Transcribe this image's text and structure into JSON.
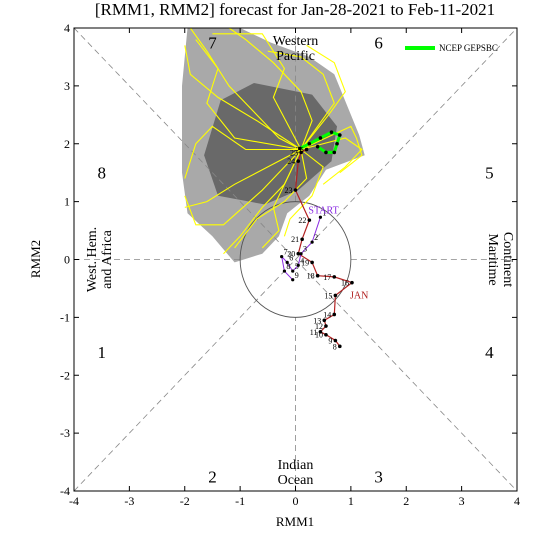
{
  "chart_data": {
    "type": "line",
    "title": "[RMM1, RMM2] forecast for Jan-28-2021 to Feb-11-2021",
    "xlabel": "RMM1",
    "ylabel": "RMM2",
    "xlim": [
      -4,
      4
    ],
    "ylim": [
      -4,
      4
    ],
    "xticks": [
      "-4",
      "-3",
      "-2",
      "-1",
      "0",
      "1",
      "2",
      "3",
      "4"
    ],
    "yticks": [
      "-4",
      "-3",
      "-2",
      "-1",
      "0",
      "1",
      "2",
      "3",
      "4"
    ],
    "grid": false,
    "legend_position": "top-right",
    "phases": [
      {
        "label": "1",
        "x": -3.5,
        "y": -1.6
      },
      {
        "label": "2",
        "x": -1.5,
        "y": -3.75
      },
      {
        "label": "3",
        "x": 1.5,
        "y": -3.75
      },
      {
        "label": "4",
        "x": 3.5,
        "y": -1.6
      },
      {
        "label": "5",
        "x": 3.5,
        "y": 1.5
      },
      {
        "label": "6",
        "x": 1.5,
        "y": 3.75
      },
      {
        "label": "7",
        "x": -1.5,
        "y": 3.75
      },
      {
        "label": "8",
        "x": -3.5,
        "y": 1.5
      }
    ],
    "regions": {
      "top": [
        "Western",
        "Pacific"
      ],
      "bottom": [
        "Indian",
        "Ocean"
      ],
      "left": [
        "West. Hem.",
        "and Africa"
      ],
      "right": [
        "Maritime",
        "Continent"
      ]
    },
    "annotations": {
      "start": "START",
      "month": "JAN"
    },
    "legend": [
      {
        "name": "NCEP GEPSBC",
        "color": "#00ff00"
      }
    ],
    "observed": {
      "color": "#b22222",
      "days": [
        {
          "d": "8",
          "x": 0.8,
          "y": -1.5
        },
        {
          "d": "9",
          "x": 0.72,
          "y": -1.4
        },
        {
          "d": "10",
          "x": 0.55,
          "y": -1.3
        },
        {
          "d": "11",
          "x": 0.45,
          "y": -1.25
        },
        {
          "d": "12",
          "x": 0.55,
          "y": -1.15
        },
        {
          "d": "13",
          "x": 0.52,
          "y": -1.05
        },
        {
          "d": "14",
          "x": 0.7,
          "y": -0.95
        },
        {
          "d": "15",
          "x": 0.72,
          "y": -0.62
        },
        {
          "d": "16",
          "x": 1.02,
          "y": -0.4
        },
        {
          "d": "17",
          "x": 0.7,
          "y": -0.3
        },
        {
          "d": "18",
          "x": 0.4,
          "y": -0.28
        },
        {
          "d": "19",
          "x": 0.3,
          "y": -0.05
        },
        {
          "d": "20",
          "x": 0.05,
          "y": 0.1
        },
        {
          "d": "21",
          "x": 0.12,
          "y": 0.35
        },
        {
          "d": "22",
          "x": 0.25,
          "y": 0.68
        },
        {
          "d": "23",
          "x": 0.0,
          "y": 1.2
        },
        {
          "d": "24",
          "x": 0.05,
          "y": 1.7
        },
        {
          "d": "25",
          "x": 0.1,
          "y": 1.85
        },
        {
          "d": "26",
          "x": 0.2,
          "y": 1.9
        }
      ]
    },
    "forecast_path": {
      "color": "#8a2be2",
      "days": [
        {
          "d": "1",
          "x": 0.45,
          "y": 0.73
        },
        {
          "d": "2",
          "x": 0.3,
          "y": 0.3
        },
        {
          "d": "3",
          "x": 0.1,
          "y": 0.1
        },
        {
          "d": "4",
          "x": 0.05,
          "y": -0.1
        },
        {
          "d": "5",
          "x": -0.05,
          "y": -0.2
        },
        {
          "d": "6",
          "x": -0.15,
          "y": -0.05
        },
        {
          "d": "7",
          "x": -0.25,
          "y": 0.05
        },
        {
          "d": "8",
          "x": -0.2,
          "y": -0.2
        },
        {
          "d": "9",
          "x": -0.05,
          "y": -0.35
        }
      ]
    },
    "ensemble_mean": {
      "name": "NCEP GEPSBC",
      "color": "#00ff00",
      "points": [
        {
          "x": 0.08,
          "y": 1.92
        },
        {
          "x": 0.25,
          "y": 2.0
        },
        {
          "x": 0.45,
          "y": 2.1
        },
        {
          "x": 0.65,
          "y": 2.2
        },
        {
          "x": 0.8,
          "y": 2.15
        },
        {
          "x": 0.75,
          "y": 2.0
        },
        {
          "x": 0.7,
          "y": 1.85
        },
        {
          "x": 0.55,
          "y": 1.85
        },
        {
          "x": 0.4,
          "y": 1.95
        }
      ]
    },
    "spread_outer": [
      [
        -1.95,
        4.0
      ],
      [
        -1.0,
        4.0
      ],
      [
        -0.45,
        3.75
      ],
      [
        0.25,
        3.5
      ],
      [
        0.7,
        3.2
      ],
      [
        1.15,
        2.15
      ],
      [
        1.25,
        1.8
      ],
      [
        0.55,
        1.55
      ],
      [
        0.25,
        1.1
      ],
      [
        -0.15,
        0.8
      ],
      [
        -0.3,
        0.4
      ],
      [
        -0.6,
        0.1
      ],
      [
        -1.1,
        -0.05
      ],
      [
        -1.5,
        0.4
      ],
      [
        -1.95,
        0.8
      ],
      [
        -2.05,
        1.5
      ],
      [
        -2.05,
        3.0
      ]
    ],
    "spread_inner": [
      [
        -1.35,
        2.75
      ],
      [
        -0.75,
        3.05
      ],
      [
        0.3,
        2.85
      ],
      [
        0.75,
        2.3
      ],
      [
        0.65,
        1.7
      ],
      [
        0.05,
        1.2
      ],
      [
        -0.55,
        0.95
      ],
      [
        -1.4,
        1.1
      ],
      [
        -1.65,
        1.8
      ]
    ],
    "ensemble_members": [
      [
        [
          0.1,
          1.9
        ],
        [
          -0.3,
          2.1
        ],
        [
          -0.8,
          2.6
        ],
        [
          -1.2,
          3.0
        ],
        [
          -1.6,
          3.6
        ],
        [
          -1.9,
          4.0
        ]
      ],
      [
        [
          0.1,
          1.9
        ],
        [
          0.3,
          2.4
        ],
        [
          0.1,
          2.9
        ],
        [
          -0.4,
          3.4
        ],
        [
          -0.9,
          3.8
        ],
        [
          -1.2,
          4.0
        ]
      ],
      [
        [
          0.1,
          1.9
        ],
        [
          0.6,
          2.5
        ],
        [
          0.9,
          2.9
        ],
        [
          0.7,
          3.4
        ],
        [
          0.2,
          3.7
        ]
      ],
      [
        [
          0.1,
          1.9
        ],
        [
          0.9,
          2.1
        ],
        [
          1.2,
          1.9
        ],
        [
          0.9,
          1.6
        ],
        [
          0.5,
          1.3
        ]
      ],
      [
        [
          0.1,
          1.9
        ],
        [
          -0.5,
          1.6
        ],
        [
          -1.1,
          1.3
        ],
        [
          -1.6,
          1.0
        ],
        [
          -2.0,
          0.9
        ]
      ],
      [
        [
          0.1,
          1.9
        ],
        [
          -0.2,
          1.3
        ],
        [
          -0.6,
          0.9
        ],
        [
          -1.0,
          0.4
        ],
        [
          -1.3,
          0.1
        ]
      ],
      [
        [
          0.1,
          1.9
        ],
        [
          -0.7,
          2.4
        ],
        [
          -1.4,
          2.8
        ],
        [
          -1.9,
          3.2
        ],
        [
          -2.0,
          3.7
        ]
      ],
      [
        [
          0.1,
          1.9
        ],
        [
          -0.1,
          1.5
        ],
        [
          -0.4,
          0.9
        ],
        [
          -0.3,
          0.5
        ],
        [
          -0.6,
          0.2
        ]
      ],
      [
        [
          0.1,
          1.9
        ],
        [
          0.5,
          1.6
        ],
        [
          0.3,
          1.1
        ],
        [
          -0.1,
          0.7
        ],
        [
          -0.2,
          0.4
        ]
      ],
      [
        [
          0.1,
          1.9
        ],
        [
          -0.9,
          1.9
        ],
        [
          -1.5,
          2.3
        ],
        [
          -1.8,
          2.0
        ],
        [
          -2.0,
          1.4
        ]
      ],
      [
        [
          0.1,
          1.9
        ],
        [
          -0.4,
          2.8
        ],
        [
          -0.2,
          3.3
        ],
        [
          -0.6,
          3.9
        ],
        [
          -1.5,
          3.9
        ]
      ],
      [
        [
          0.1,
          1.9
        ],
        [
          0.7,
          2.7
        ],
        [
          0.5,
          3.2
        ],
        [
          0.1,
          3.5
        ],
        [
          -0.5,
          3.6
        ]
      ],
      [
        [
          0.1,
          1.9
        ],
        [
          1.0,
          2.3
        ],
        [
          1.1,
          2.1
        ],
        [
          1.2,
          1.8
        ],
        [
          0.8,
          1.5
        ]
      ],
      [
        [
          0.1,
          1.9
        ],
        [
          -0.6,
          1.2
        ],
        [
          -1.3,
          0.6
        ],
        [
          -1.8,
          0.6
        ],
        [
          -2.0,
          1.1
        ]
      ],
      [
        [
          0.1,
          1.9
        ],
        [
          -1.1,
          2.1
        ],
        [
          -1.6,
          2.7
        ],
        [
          -1.4,
          3.3
        ],
        [
          -1.8,
          3.8
        ]
      ],
      [
        [
          0.1,
          1.9
        ],
        [
          0.2,
          1.4
        ],
        [
          -0.2,
          1.0
        ],
        [
          -0.7,
          0.7
        ],
        [
          -1.1,
          0.2
        ]
      ]
    ]
  }
}
